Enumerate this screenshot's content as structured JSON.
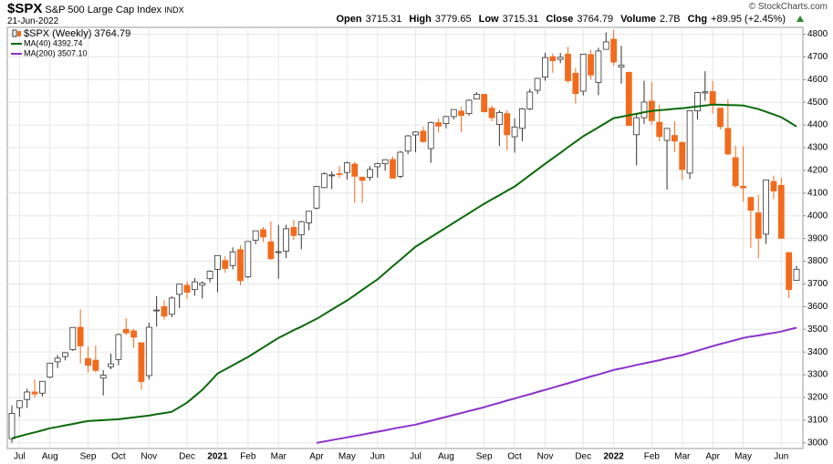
{
  "header": {
    "symbol": "$SPX",
    "name": "S&P 500 Large Cap Index",
    "exchange": "INDX",
    "date": "21-Jun-2022",
    "quote": [
      {
        "label": "Open",
        "value": "3715.31"
      },
      {
        "label": "High",
        "value": "3779.65"
      },
      {
        "label": "Low",
        "value": "3715.31"
      },
      {
        "label": "Close",
        "value": "3764.79"
      },
      {
        "label": "Volume",
        "value": "2.7B"
      },
      {
        "label": "Chg",
        "value": "+89.95 (+2.45%)"
      }
    ],
    "source": "© StockCharts.com"
  },
  "chart_data": {
    "type": "candlestick",
    "categories": [
      null,
      "Jul",
      null,
      null,
      null,
      "Aug",
      null,
      null,
      null,
      null,
      "Sep",
      null,
      null,
      null,
      "Oct",
      null,
      null,
      null,
      "Nov",
      null,
      null,
      null,
      null,
      "Dec",
      null,
      null,
      null,
      "2021",
      null,
      null,
      null,
      "Feb",
      null,
      null,
      null,
      "Mar",
      null,
      null,
      null,
      null,
      "Apr",
      null,
      null,
      null,
      "May",
      null,
      null,
      null,
      "Jun",
      null,
      null,
      null,
      null,
      "Jul",
      null,
      null,
      null,
      "Aug",
      null,
      null,
      null,
      null,
      "Sep",
      null,
      null,
      null,
      "Oct",
      null,
      null,
      null,
      "Nov",
      null,
      null,
      null,
      null,
      "Dec",
      null,
      null,
      null,
      "2022",
      null,
      null,
      null,
      null,
      "Feb",
      null,
      null,
      null,
      "Mar",
      null,
      null,
      null,
      "Apr",
      null,
      null,
      null,
      "May",
      null,
      null,
      null,
      null,
      "Jun",
      null,
      null
    ],
    "ylim": [
      2975,
      4830
    ],
    "yticks": [
      3000,
      3100,
      3200,
      3300,
      3400,
      3500,
      3600,
      3700,
      3800,
      3900,
      4000,
      4100,
      4200,
      4300,
      4400,
      4500,
      4600,
      4700,
      4800
    ],
    "grid": true,
    "legend": "top-left",
    "series": [
      {
        "name": "$SPX (Weekly) 3764.79",
        "type": "candlestick",
        "up_color": "#ffffff",
        "down_color": "#f26b1d",
        "open": [
          3018,
          3155,
          3191,
          3224,
          3219,
          3289,
          3357,
          3380,
          3411,
          3509,
          3371,
          3364,
          3285,
          3335,
          3367,
          3500,
          3493,
          3441,
          3296,
          3583,
          3600,
          3566,
          3654,
          3694,
          3675,
          3694,
          3723,
          3764,
          3803,
          3781,
          3851,
          3731,
          3892,
          3939,
          3885,
          3842,
          3844,
          3949,
          3916,
          3969,
          4034,
          4124,
          4178,
          4185,
          4191,
          4228,
          4170,
          4170,
          4216,
          4229,
          4248,
          4174,
          4285,
          4356,
          4373,
          4296,
          4410,
          4406,
          4437,
          4461,
          4450,
          4514,
          4535,
          4474,
          4402,
          4450,
          4348,
          4385,
          4471,
          4553,
          4611,
          4701,
          4689,
          4712,
          4628,
          4549,
          4710,
          4587,
          4733,
          4778,
          4655,
          4632,
          4357,
          4432,
          4505,
          4412,
          4332,
          4354,
          4323,
          4188,
          4462,
          4541,
          4547,
          4474,
          4385,
          4256,
          4130,
          4081,
          4013,
          3919,
          4151,
          4134,
          3838,
          3715.31
        ],
        "high": [
          3165,
          3186,
          3238,
          3279,
          3272,
          3352,
          3387,
          3399,
          3509,
          3588,
          3425,
          3428,
          3320,
          3393,
          3482,
          3549,
          3502,
          3441,
          3529,
          3646,
          3628,
          3645,
          3699,
          3712,
          3726,
          3711,
          3760,
          3826,
          3823,
          3861,
          3870,
          3887,
          3934,
          3950,
          3975,
          3960,
          3960,
          3983,
          3978,
          4020,
          4129,
          4191,
          4195,
          4219,
          4238,
          4237,
          4174,
          4219,
          4234,
          4249,
          4261,
          4286,
          4356,
          4372,
          4393,
          4415,
          4429,
          4440,
          4469,
          4480,
          4513,
          4545,
          4535,
          4486,
          4465,
          4465,
          4429,
          4475,
          4559,
          4608,
          4718,
          4714,
          4717,
          4744,
          4652,
          4713,
          4731,
          4740,
          4808,
          4819,
          4749,
          4632,
          4453,
          4595,
          4590,
          4490,
          4385,
          4416,
          4327,
          4465,
          4546,
          4637,
          4594,
          4474,
          4513,
          4308,
          4307,
          4082,
          4091,
          4160,
          4177,
          4168,
          3838,
          3779.65
        ],
        "low": [
          3000,
          3115,
          3154,
          3199,
          3204,
          3284,
          3329,
          3363,
          3405,
          3349,
          3310,
          3310,
          3209,
          3324,
          3342,
          3474,
          3419,
          3234,
          3279,
          3512,
          3543,
          3553,
          3594,
          3633,
          3648,
          3636,
          3707,
          3663,
          3749,
          3764,
          3694,
          3725,
          3875,
          3885,
          3805,
          3723,
          3814,
          3894,
          3853,
          3936,
          4028,
          4122,
          4118,
          4166,
          4160,
          4057,
          4056,
          4155,
          4168,
          4199,
          4165,
          4165,
          4271,
          4280,
          4321,
          4233,
          4367,
          4385,
          4424,
          4368,
          4441,
          4513,
          4455,
          4416,
          4306,
          4288,
          4278,
          4329,
          4465,
          4537,
          4595,
          4630,
          4672,
          4585,
          4495,
          4530,
          4600,
          4531,
          4733,
          4662,
          4582,
          4395,
          4222,
          4405,
          4401,
          4328,
          4115,
          4280,
          4157,
          4162,
          4424,
          4507,
          4450,
          4381,
          4267,
          4124,
          4062,
          3859,
          3811,
          3876,
          4073,
          3900,
          3637,
          3715.31
        ],
        "close": [
          3130,
          3185,
          3224,
          3215,
          3271,
          3351,
          3373,
          3397,
          3508,
          3427,
          3341,
          3319,
          3298,
          3348,
          3477,
          3484,
          3465,
          3270,
          3509,
          3585,
          3558,
          3638,
          3699,
          3663,
          3709,
          3703,
          3756,
          3825,
          3768,
          3841,
          3714,
          3887,
          3934,
          3907,
          3811,
          3842,
          3943,
          3913,
          3974,
          4020,
          4129,
          4185,
          4180,
          4181,
          4233,
          4174,
          4156,
          4204,
          4230,
          4247,
          4166,
          4280,
          4352,
          4369,
          4327,
          4411,
          4395,
          4437,
          4468,
          4442,
          4509,
          4535,
          4458,
          4432,
          4455,
          4357,
          4391,
          4471,
          4545,
          4605,
          4697,
          4683,
          4698,
          4595,
          4538,
          4712,
          4620,
          4726,
          4766,
          4677,
          4663,
          4398,
          4432,
          4501,
          4419,
          4349,
          4385,
          4329,
          4204,
          4463,
          4543,
          4546,
          4488,
          4393,
          4272,
          4132,
          4123,
          4024,
          3901,
          4158,
          4109,
          3901,
          3675,
          3764.79
        ]
      },
      {
        "name": "MA(40) 4392.74",
        "type": "line",
        "color": "#0a6a0a",
        "values": [
          3020,
          3029,
          3038,
          3046,
          3055,
          3064,
          3070,
          3077,
          3083,
          3090,
          3096,
          3098,
          3100,
          3102,
          3104,
          3108,
          3112,
          3116,
          3120,
          3126,
          3131,
          3137,
          3157,
          3177,
          3205,
          3233,
          3269,
          3305,
          3323,
          3341,
          3360,
          3378,
          3399,
          3420,
          3441,
          3462,
          3479,
          3496,
          3512,
          3529,
          3546,
          3566,
          3587,
          3607,
          3627,
          3650,
          3674,
          3697,
          3720,
          3749,
          3778,
          3806,
          3835,
          3864,
          3885,
          3906,
          3927,
          3948,
          3969,
          3990,
          4011,
          4032,
          4053,
          4072,
          4091,
          4110,
          4129,
          4154,
          4179,
          4204,
          4229,
          4253,
          4277,
          4302,
          4326,
          4350,
          4370,
          4390,
          4410,
          4430,
          4436,
          4443,
          4449,
          4456,
          4462,
          4465,
          4468,
          4471,
          4474,
          4478,
          4482,
          4486,
          4490,
          4489,
          4488,
          4487,
          4486,
          4478,
          4470,
          4458,
          4446,
          4434,
          4414,
          4393
        ]
      },
      {
        "name": "MA(200) 3507.10",
        "type": "line",
        "color": "#8b32cc",
        "values": [
          null,
          null,
          null,
          null,
          null,
          null,
          null,
          null,
          null,
          null,
          null,
          null,
          null,
          null,
          null,
          null,
          null,
          null,
          null,
          null,
          null,
          null,
          null,
          null,
          null,
          null,
          null,
          null,
          null,
          null,
          null,
          null,
          null,
          null,
          null,
          null,
          null,
          null,
          null,
          null,
          3000,
          3006,
          3012,
          3018,
          3024,
          3030,
          3036,
          3043,
          3049,
          3055,
          3062,
          3068,
          3074,
          3080,
          3089,
          3097,
          3106,
          3114,
          3123,
          3131,
          3140,
          3148,
          3157,
          3167,
          3176,
          3186,
          3195,
          3205,
          3214,
          3224,
          3233,
          3243,
          3253,
          3262,
          3272,
          3282,
          3292,
          3301,
          3311,
          3321,
          3328,
          3335,
          3343,
          3350,
          3357,
          3364,
          3372,
          3379,
          3386,
          3396,
          3406,
          3416,
          3426,
          3435,
          3444,
          3453,
          3462,
          3468,
          3473,
          3479,
          3484,
          3490,
          3499,
          3507
        ]
      }
    ]
  }
}
